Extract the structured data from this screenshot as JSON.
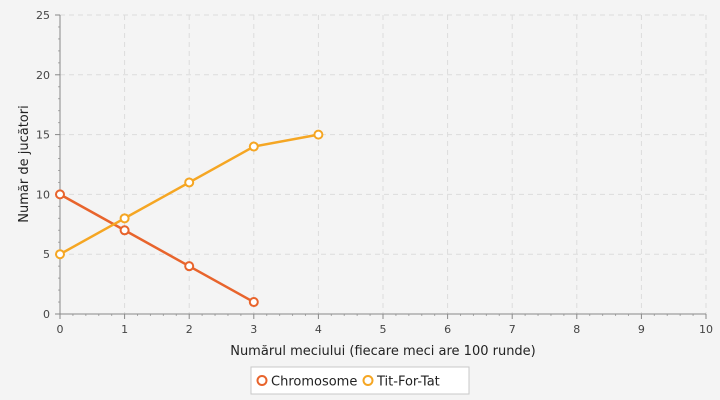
{
  "chart_data": {
    "type": "line",
    "title": "",
    "xlabel": "Numărul meciului (fiecare meci are 100 runde)",
    "ylabel": "Număr de jucători",
    "xlim": [
      0,
      10
    ],
    "ylim": [
      0,
      25
    ],
    "x_ticks": [
      "0",
      "1",
      "2",
      "3",
      "4",
      "5",
      "6",
      "7",
      "8",
      "9",
      "10"
    ],
    "y_ticks": [
      "0",
      "5",
      "10",
      "15",
      "20",
      "25"
    ],
    "grid": true,
    "legend_position": "bottom-center",
    "series": [
      {
        "name": "Chromosome",
        "color": "#e8642c",
        "x": [
          0,
          1,
          2,
          3
        ],
        "y": [
          10,
          7,
          4,
          1
        ]
      },
      {
        "name": "Tit-For-Tat",
        "color": "#f5a623",
        "x": [
          0,
          1,
          2,
          3,
          4
        ],
        "y": [
          5,
          8,
          11,
          14,
          15
        ]
      }
    ]
  }
}
